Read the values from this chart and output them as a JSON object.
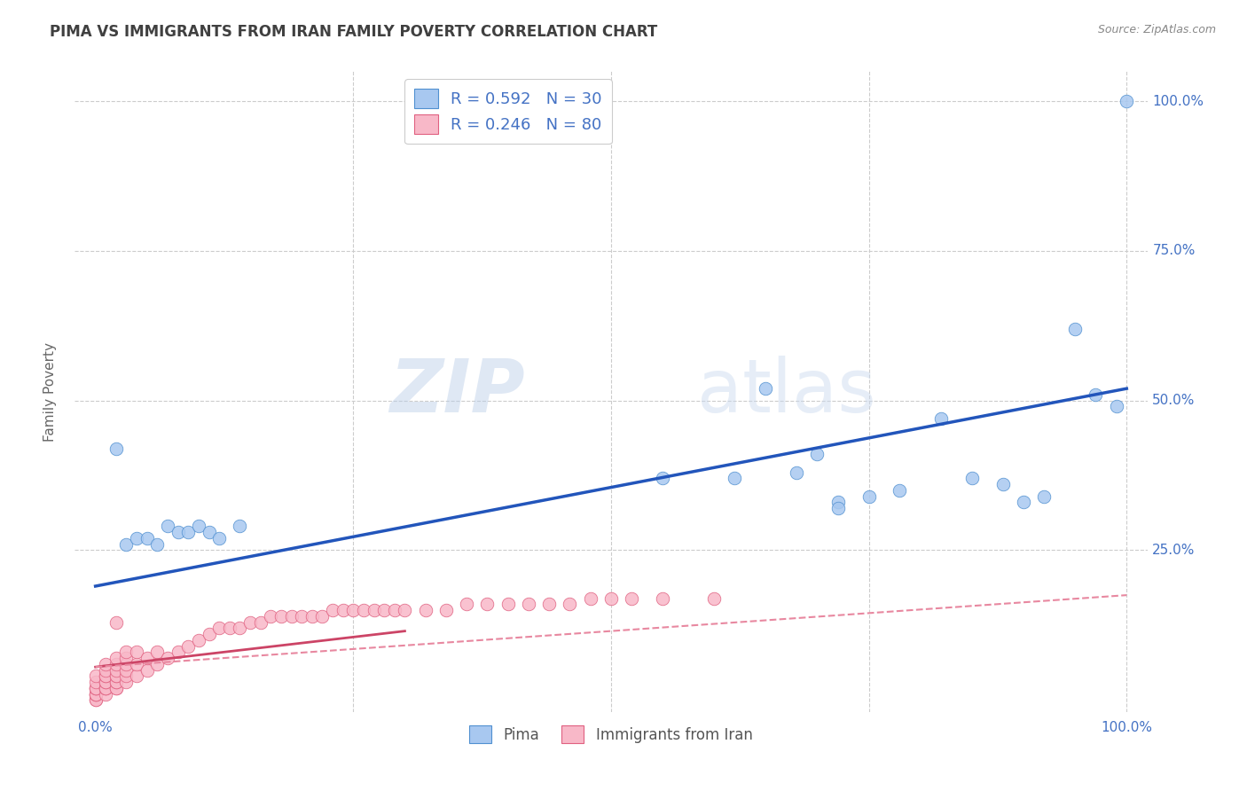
{
  "title": "PIMA VS IMMIGRANTS FROM IRAN FAMILY POVERTY CORRELATION CHART",
  "source": "Source: ZipAtlas.com",
  "ylabel": "Family Poverty",
  "xlim": [
    -0.02,
    1.02
  ],
  "ylim": [
    -0.02,
    1.05
  ],
  "pima_color": "#a8c8f0",
  "pima_edge_color": "#5090d0",
  "iran_color": "#f8b8c8",
  "iran_edge_color": "#e06080",
  "pima_line_color": "#2255bb",
  "iran_solid_color": "#cc4466",
  "iran_dash_color": "#e888a0",
  "background_color": "#ffffff",
  "grid_color": "#cccccc",
  "watermark_zip": "ZIP",
  "watermark_atlas": "atlas",
  "legend_text_color": "#4472c4",
  "title_color": "#404040",
  "tick_color": "#4472c4",
  "axis_label_color": "#666666",
  "pima_scatter": {
    "x": [
      0.02,
      0.03,
      0.04,
      0.05,
      0.06,
      0.07,
      0.08,
      0.09,
      0.1,
      0.11,
      0.12,
      0.14,
      0.55,
      0.62,
      0.65,
      0.68,
      0.7,
      0.72,
      0.72,
      0.75,
      0.78,
      0.82,
      0.85,
      0.88,
      0.9,
      0.92,
      0.95,
      0.97,
      0.99,
      1.0
    ],
    "y": [
      0.42,
      0.26,
      0.27,
      0.27,
      0.26,
      0.29,
      0.28,
      0.28,
      0.29,
      0.28,
      0.27,
      0.29,
      0.37,
      0.37,
      0.52,
      0.38,
      0.41,
      0.33,
      0.32,
      0.34,
      0.35,
      0.47,
      0.37,
      0.36,
      0.33,
      0.34,
      0.62,
      0.51,
      0.49,
      1.0
    ]
  },
  "iran_scatter": {
    "x": [
      0.0,
      0.0,
      0.0,
      0.0,
      0.0,
      0.0,
      0.0,
      0.0,
      0.0,
      0.0,
      0.01,
      0.01,
      0.01,
      0.01,
      0.01,
      0.01,
      0.01,
      0.01,
      0.01,
      0.01,
      0.02,
      0.02,
      0.02,
      0.02,
      0.02,
      0.02,
      0.02,
      0.02,
      0.02,
      0.02,
      0.03,
      0.03,
      0.03,
      0.03,
      0.03,
      0.03,
      0.04,
      0.04,
      0.04,
      0.05,
      0.05,
      0.06,
      0.06,
      0.07,
      0.08,
      0.09,
      0.1,
      0.11,
      0.12,
      0.13,
      0.14,
      0.15,
      0.16,
      0.17,
      0.18,
      0.19,
      0.2,
      0.21,
      0.22,
      0.23,
      0.24,
      0.25,
      0.26,
      0.27,
      0.28,
      0.29,
      0.3,
      0.32,
      0.34,
      0.36,
      0.38,
      0.4,
      0.42,
      0.44,
      0.46,
      0.48,
      0.5,
      0.52,
      0.55,
      0.6
    ],
    "y": [
      0.0,
      0.0,
      0.01,
      0.01,
      0.01,
      0.02,
      0.02,
      0.02,
      0.03,
      0.04,
      0.01,
      0.02,
      0.02,
      0.02,
      0.03,
      0.03,
      0.04,
      0.04,
      0.05,
      0.06,
      0.02,
      0.02,
      0.03,
      0.03,
      0.04,
      0.04,
      0.05,
      0.06,
      0.07,
      0.13,
      0.03,
      0.04,
      0.05,
      0.06,
      0.07,
      0.08,
      0.04,
      0.06,
      0.08,
      0.05,
      0.07,
      0.06,
      0.08,
      0.07,
      0.08,
      0.09,
      0.1,
      0.11,
      0.12,
      0.12,
      0.12,
      0.13,
      0.13,
      0.14,
      0.14,
      0.14,
      0.14,
      0.14,
      0.14,
      0.15,
      0.15,
      0.15,
      0.15,
      0.15,
      0.15,
      0.15,
      0.15,
      0.15,
      0.15,
      0.16,
      0.16,
      0.16,
      0.16,
      0.16,
      0.16,
      0.17,
      0.17,
      0.17,
      0.17,
      0.17
    ]
  },
  "pima_line": {
    "x0": 0.0,
    "x1": 1.0,
    "y0": 0.19,
    "y1": 0.52
  },
  "iran_solid_line": {
    "x0": 0.0,
    "x1": 0.3,
    "y0": 0.055,
    "y1": 0.115
  },
  "iran_dash_line": {
    "x0": 0.0,
    "x1": 1.0,
    "y0": 0.055,
    "y1": 0.175
  },
  "bottom_legend_labels": [
    "Pima",
    "Immigrants from Iran"
  ],
  "bottom_legend_colors": [
    "#a8c8f0",
    "#f8b8c8"
  ],
  "bottom_legend_edge_colors": [
    "#5090d0",
    "#e06080"
  ]
}
